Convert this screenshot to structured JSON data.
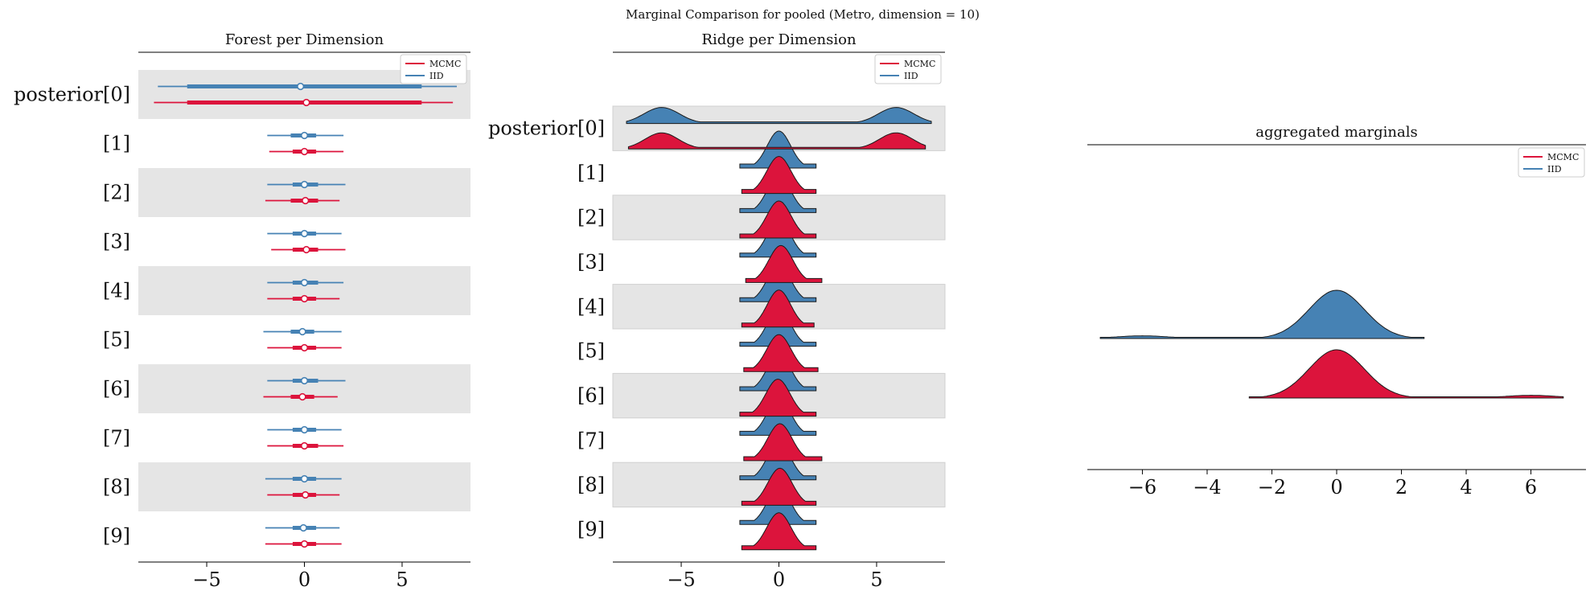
{
  "suptitle": "Marginal Comparison for pooled (Metro, dimension = 10)",
  "colors": {
    "mcmc": "#dc143c",
    "iid": "#4682b4",
    "band": "#e5e5e5"
  },
  "legend": {
    "labels": [
      "MCMC",
      "IID"
    ]
  },
  "chart_data": [
    {
      "type": "forest",
      "title": "Forest per Dimension",
      "xlabel": "",
      "xlim": [
        -8.5,
        8.5
      ],
      "xticks": [
        -5,
        0,
        5
      ],
      "xtick_labels": [
        "−5",
        "0",
        "5"
      ],
      "row_labels": [
        "posterior[0]",
        "[1]",
        "[2]",
        "[3]",
        "[4]",
        "[5]",
        "[6]",
        "[7]",
        "[8]",
        "[9]"
      ],
      "legend_position": "upper right",
      "series": [
        {
          "name": "MCMC",
          "intervals": [
            {
              "thin": [
                -7.7,
                7.6
              ],
              "thick": [
                -6.0,
                6.0
              ],
              "point": 0.1
            },
            {
              "thin": [
                -1.8,
                2.0
              ],
              "thick": [
                -0.6,
                0.6
              ],
              "point": 0.0
            },
            {
              "thin": [
                -2.0,
                1.8
              ],
              "thick": [
                -0.7,
                0.7
              ],
              "point": 0.05
            },
            {
              "thin": [
                -1.7,
                2.1
              ],
              "thick": [
                -0.6,
                0.7
              ],
              "point": 0.1
            },
            {
              "thin": [
                -1.9,
                1.8
              ],
              "thick": [
                -0.6,
                0.6
              ],
              "point": 0.0
            },
            {
              "thin": [
                -1.9,
                1.9
              ],
              "thick": [
                -0.6,
                0.6
              ],
              "point": 0.0
            },
            {
              "thin": [
                -2.1,
                1.7
              ],
              "thick": [
                -0.7,
                0.5
              ],
              "point": -0.1
            },
            {
              "thin": [
                -1.9,
                2.0
              ],
              "thick": [
                -0.6,
                0.7
              ],
              "point": 0.0
            },
            {
              "thin": [
                -1.9,
                1.8
              ],
              "thick": [
                -0.6,
                0.6
              ],
              "point": 0.05
            },
            {
              "thin": [
                -2.0,
                1.9
              ],
              "thick": [
                -0.6,
                0.6
              ],
              "point": 0.0
            }
          ]
        },
        {
          "name": "IID",
          "intervals": [
            {
              "thin": [
                -7.5,
                7.8
              ],
              "thick": [
                -6.0,
                6.0
              ],
              "point": -0.2
            },
            {
              "thin": [
                -1.9,
                2.0
              ],
              "thick": [
                -0.7,
                0.6
              ],
              "point": 0.0
            },
            {
              "thin": [
                -1.9,
                2.1
              ],
              "thick": [
                -0.6,
                0.7
              ],
              "point": 0.0
            },
            {
              "thin": [
                -1.9,
                1.9
              ],
              "thick": [
                -0.6,
                0.6
              ],
              "point": 0.0
            },
            {
              "thin": [
                -1.9,
                2.0
              ],
              "thick": [
                -0.6,
                0.7
              ],
              "point": 0.0
            },
            {
              "thin": [
                -2.1,
                1.9
              ],
              "thick": [
                -0.7,
                0.5
              ],
              "point": -0.1
            },
            {
              "thin": [
                -1.9,
                2.1
              ],
              "thick": [
                -0.6,
                0.7
              ],
              "point": 0.0
            },
            {
              "thin": [
                -1.9,
                1.9
              ],
              "thick": [
                -0.6,
                0.6
              ],
              "point": 0.0
            },
            {
              "thin": [
                -2.0,
                1.9
              ],
              "thick": [
                -0.6,
                0.6
              ],
              "point": 0.0
            },
            {
              "thin": [
                -2.0,
                1.8
              ],
              "thick": [
                -0.6,
                0.6
              ],
              "point": -0.05
            }
          ]
        }
      ]
    },
    {
      "type": "ridge",
      "title": "Ridge per Dimension",
      "xlabel": "",
      "xlim": [
        -8.5,
        8.5
      ],
      "xticks": [
        -5,
        0,
        5
      ],
      "xtick_labels": [
        "−5",
        "0",
        "5"
      ],
      "row_labels": [
        "posterior[0]",
        "[1]",
        "[2]",
        "[3]",
        "[4]",
        "[5]",
        "[6]",
        "[7]",
        "[8]",
        "[9]"
      ],
      "legend_position": "upper right",
      "series": [
        {
          "name": "MCMC",
          "rows": [
            {
              "range": [
                -7.7,
                7.5
              ],
              "components": [
                {
                  "mu": -6.0,
                  "sd": 0.85,
                  "w": 0.5
                },
                {
                  "mu": 6.0,
                  "sd": 0.85,
                  "w": 0.5
                }
              ]
            },
            {
              "range": [
                -1.9,
                1.9
              ],
              "components": [
                {
                  "mu": 0.0,
                  "sd": 0.62,
                  "w": 1
                }
              ]
            },
            {
              "range": [
                -2.0,
                1.9
              ],
              "components": [
                {
                  "mu": 0.0,
                  "sd": 0.62,
                  "w": 1
                }
              ]
            },
            {
              "range": [
                -1.7,
                2.2
              ],
              "components": [
                {
                  "mu": 0.1,
                  "sd": 0.62,
                  "w": 1
                }
              ]
            },
            {
              "range": [
                -1.9,
                1.8
              ],
              "components": [
                {
                  "mu": 0.0,
                  "sd": 0.6,
                  "w": 1
                }
              ]
            },
            {
              "range": [
                -1.8,
                2.0
              ],
              "components": [
                {
                  "mu": 0.0,
                  "sd": 0.62,
                  "w": 1
                }
              ]
            },
            {
              "range": [
                -2.0,
                1.9
              ],
              "components": [
                {
                  "mu": -0.05,
                  "sd": 0.62,
                  "w": 1
                }
              ]
            },
            {
              "range": [
                -1.8,
                2.2
              ],
              "components": [
                {
                  "mu": 0.05,
                  "sd": 0.62,
                  "w": 1
                }
              ]
            },
            {
              "range": [
                -1.9,
                1.9
              ],
              "components": [
                {
                  "mu": 0.05,
                  "sd": 0.62,
                  "w": 1
                }
              ]
            },
            {
              "range": [
                -1.9,
                1.9
              ],
              "components": [
                {
                  "mu": 0.0,
                  "sd": 0.62,
                  "w": 1
                }
              ]
            }
          ]
        },
        {
          "name": "IID",
          "rows": [
            {
              "range": [
                -7.8,
                7.8
              ],
              "components": [
                {
                  "mu": -6.0,
                  "sd": 0.9,
                  "w": 0.5
                },
                {
                  "mu": 6.0,
                  "sd": 0.9,
                  "w": 0.5
                }
              ]
            },
            {
              "range": [
                -2.0,
                1.9
              ],
              "components": [
                {
                  "mu": 0.0,
                  "sd": 0.6,
                  "w": 1
                }
              ]
            },
            {
              "range": [
                -2.0,
                1.9
              ],
              "components": [
                {
                  "mu": 0.0,
                  "sd": 0.6,
                  "w": 1
                }
              ]
            },
            {
              "range": [
                -2.0,
                1.9
              ],
              "components": [
                {
                  "mu": 0.0,
                  "sd": 0.6,
                  "w": 1
                }
              ]
            },
            {
              "range": [
                -2.0,
                1.9
              ],
              "components": [
                {
                  "mu": 0.0,
                  "sd": 0.6,
                  "w": 1
                }
              ]
            },
            {
              "range": [
                -2.0,
                1.9
              ],
              "components": [
                {
                  "mu": 0.0,
                  "sd": 0.6,
                  "w": 1
                }
              ]
            },
            {
              "range": [
                -2.0,
                1.9
              ],
              "components": [
                {
                  "mu": 0.0,
                  "sd": 0.6,
                  "w": 1
                }
              ]
            },
            {
              "range": [
                -2.0,
                1.9
              ],
              "components": [
                {
                  "mu": 0.0,
                  "sd": 0.6,
                  "w": 1
                }
              ]
            },
            {
              "range": [
                -2.0,
                1.9
              ],
              "components": [
                {
                  "mu": 0.0,
                  "sd": 0.6,
                  "w": 1
                }
              ]
            },
            {
              "range": [
                -2.0,
                1.9
              ],
              "components": [
                {
                  "mu": 0.0,
                  "sd": 0.6,
                  "w": 1
                }
              ]
            }
          ]
        }
      ]
    },
    {
      "type": "ridge",
      "title": "aggregated marginals",
      "xlabel": "",
      "xlim": [
        -7.7,
        7.7
      ],
      "xticks": [
        -6,
        -4,
        -2,
        0,
        2,
        4,
        6
      ],
      "xtick_labels": [
        "−6",
        "−4",
        "−2",
        "0",
        "2",
        "4",
        "6"
      ],
      "legend_position": "upper right",
      "series": [
        {
          "name": "IID",
          "range": [
            -7.3,
            2.7
          ],
          "components": [
            {
              "mu": 0.0,
              "sd": 0.85,
              "w": 0.95
            },
            {
              "mu": -6.0,
              "sd": 0.8,
              "w": 0.05
            }
          ]
        },
        {
          "name": "MCMC",
          "range": [
            -2.7,
            7.0
          ],
          "components": [
            {
              "mu": 0.0,
              "sd": 0.85,
              "w": 0.95
            },
            {
              "mu": 6.0,
              "sd": 0.8,
              "w": 0.05
            }
          ]
        }
      ]
    }
  ]
}
